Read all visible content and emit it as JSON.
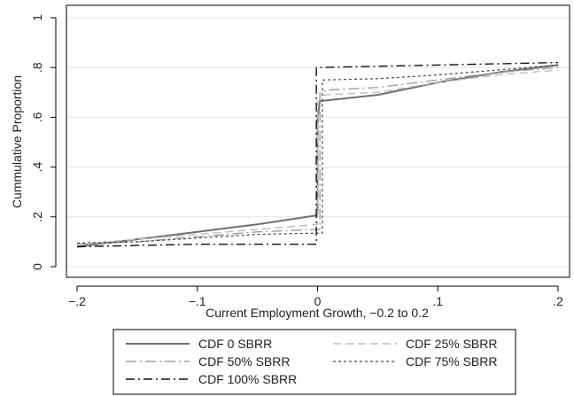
{
  "chart_data": {
    "type": "line",
    "title": "",
    "xlabel": "Current Employment Growth, −0.2 to 0.2",
    "ylabel": "Cummulative Proportion",
    "xlim": [
      -0.2,
      0.2
    ],
    "ylim": [
      0,
      1
    ],
    "xticks": [
      {
        "value": -0.2,
        "label": "−.2"
      },
      {
        "value": -0.1,
        "label": "−.1"
      },
      {
        "value": 0,
        "label": "0"
      },
      {
        "value": 0.1,
        "label": ".1"
      },
      {
        "value": 0.2,
        "label": ".2"
      }
    ],
    "yticks": [
      {
        "value": 0,
        "label": "0"
      },
      {
        "value": 0.2,
        "label": ".2"
      },
      {
        "value": 0.4,
        "label": ".4"
      },
      {
        "value": 0.6,
        "label": ".6"
      },
      {
        "value": 0.8,
        "label": ".8"
      },
      {
        "value": 1,
        "label": "1"
      }
    ],
    "grid": "horizontal",
    "legend_position": "bottom",
    "series": [
      {
        "name": "CDF 0 SBRR",
        "color": "#707070",
        "dash": "solid",
        "width": 2,
        "points": [
          [
            -0.2,
            0.08
          ],
          [
            -0.15,
            0.11
          ],
          [
            -0.1,
            0.14
          ],
          [
            -0.05,
            0.17
          ],
          [
            -0.002,
            0.205
          ],
          [
            0.0,
            0.21
          ],
          [
            0.0,
            0.6
          ],
          [
            0.002,
            0.665
          ],
          [
            0.05,
            0.69
          ],
          [
            0.1,
            0.74
          ],
          [
            0.15,
            0.78
          ],
          [
            0.2,
            0.81
          ]
        ]
      },
      {
        "name": "CDF 25% SBRR",
        "color": "#bdbdbd",
        "dash": "dashed",
        "width": 1.4,
        "points": [
          [
            -0.2,
            0.09
          ],
          [
            -0.15,
            0.11
          ],
          [
            -0.1,
            0.13
          ],
          [
            -0.05,
            0.15
          ],
          [
            0.0,
            0.17
          ],
          [
            0.0,
            0.66
          ],
          [
            0.005,
            0.69
          ],
          [
            0.05,
            0.7
          ],
          [
            0.1,
            0.74
          ],
          [
            0.15,
            0.77
          ],
          [
            0.2,
            0.79
          ]
        ]
      },
      {
        "name": "CDF 50% SBRR",
        "color": "#9e9e9e",
        "dash": "dashdot",
        "width": 1.4,
        "points": [
          [
            -0.2,
            0.09
          ],
          [
            -0.15,
            0.1
          ],
          [
            -0.1,
            0.12
          ],
          [
            -0.05,
            0.14
          ],
          [
            0.002,
            0.15
          ],
          [
            0.002,
            0.7
          ],
          [
            0.01,
            0.71
          ],
          [
            0.05,
            0.72
          ],
          [
            0.1,
            0.75
          ],
          [
            0.15,
            0.78
          ],
          [
            0.2,
            0.8
          ]
        ]
      },
      {
        "name": "CDF 75% SBRR",
        "color": "#444444",
        "dash": "dotted",
        "width": 1.2,
        "points": [
          [
            -0.2,
            0.095
          ],
          [
            -0.15,
            0.1
          ],
          [
            -0.1,
            0.115
          ],
          [
            -0.05,
            0.13
          ],
          [
            0.004,
            0.135
          ],
          [
            0.004,
            0.75
          ],
          [
            0.05,
            0.755
          ],
          [
            0.1,
            0.77
          ],
          [
            0.15,
            0.79
          ],
          [
            0.2,
            0.81
          ]
        ]
      },
      {
        "name": "CDF 100% SBRR",
        "color": "#111111",
        "dash": "longdashdot",
        "width": 1.4,
        "points": [
          [
            -0.2,
            0.08
          ],
          [
            -0.15,
            0.085
          ],
          [
            -0.1,
            0.09
          ],
          [
            -0.05,
            0.09
          ],
          [
            -0.001,
            0.09
          ],
          [
            -0.001,
            0.8
          ],
          [
            0.0,
            0.8
          ],
          [
            0.05,
            0.805
          ],
          [
            0.1,
            0.81
          ],
          [
            0.15,
            0.815
          ],
          [
            0.2,
            0.82
          ]
        ]
      }
    ]
  }
}
